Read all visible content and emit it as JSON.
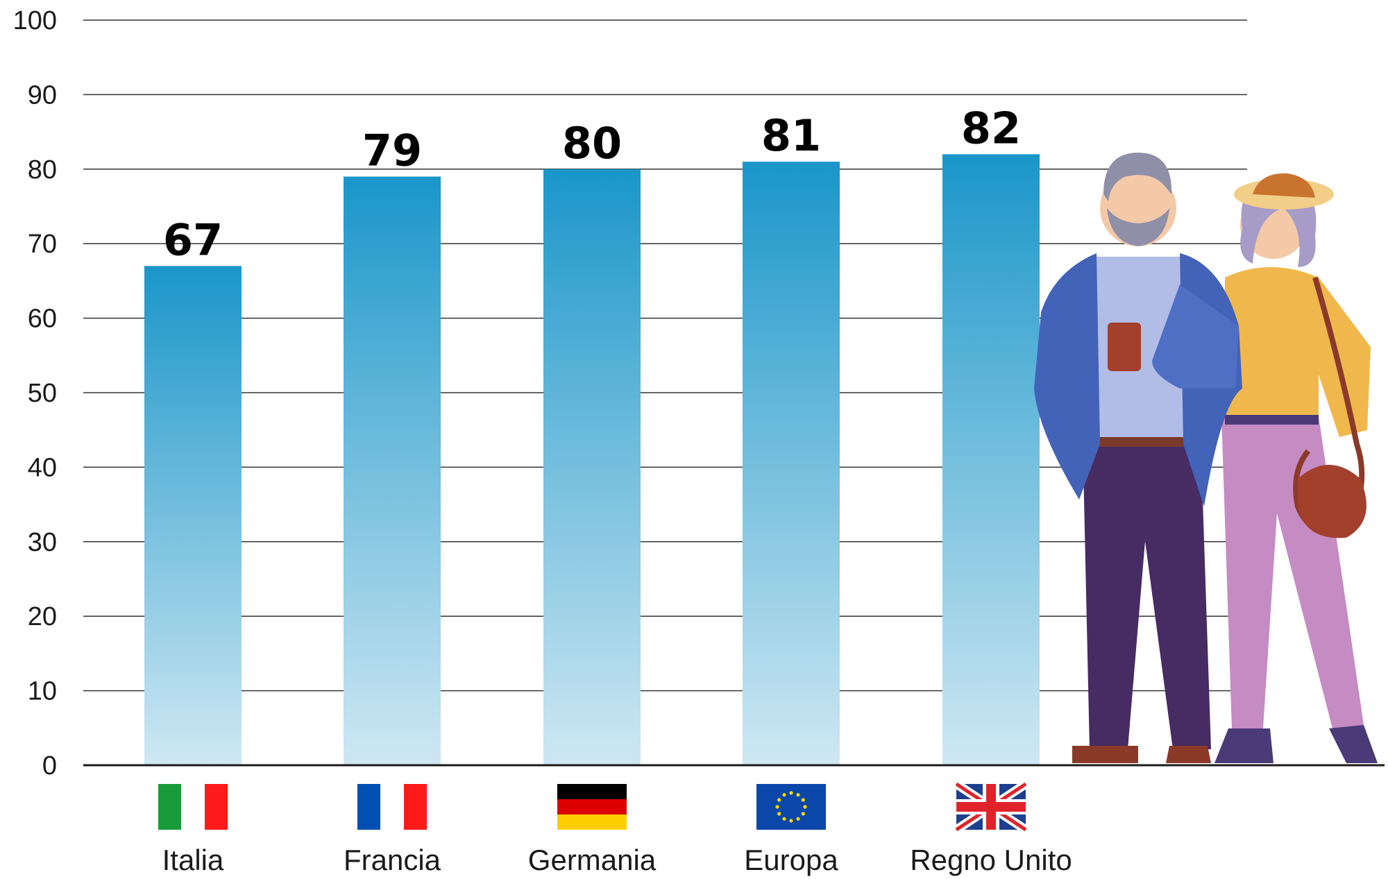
{
  "chart_data": {
    "type": "bar",
    "categories": [
      "Italia",
      "Francia",
      "Germania",
      "Europa",
      "Regno Unito"
    ],
    "values": [
      67,
      79,
      80,
      81,
      82
    ],
    "ylim": [
      0,
      100
    ],
    "yticks": [
      0,
      10,
      20,
      30,
      40,
      50,
      60,
      70,
      80,
      90,
      100
    ],
    "grid": true,
    "bar_color_top": "#1a96c9",
    "bar_color_bottom": "#cfe8f3",
    "flags": [
      "italy-flag-icon",
      "france-flag-icon",
      "germany-flag-icon",
      "eu-flag-icon",
      "uk-flag-icon"
    ]
  }
}
